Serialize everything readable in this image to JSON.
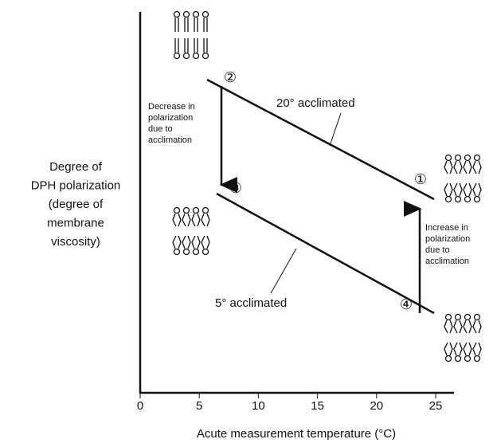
{
  "x_axis": {
    "label": "Acute measurement temperature (°C)",
    "ticks": [
      "0",
      "5",
      "10",
      "15",
      "20",
      "25"
    ]
  },
  "y_axis": {
    "label_lines": [
      "Degree of",
      "DPH polarization",
      "(degree of",
      "membrane",
      "viscosity)"
    ]
  },
  "lines": [
    {
      "label": "20° acclimated"
    },
    {
      "label": "5° acclimated"
    }
  ],
  "points": [
    "①",
    "②",
    "③",
    "④"
  ],
  "annotations": [
    {
      "lines": [
        "Decrease in",
        "polarization",
        "due to",
        "acclimation"
      ]
    },
    {
      "lines": [
        "Increase in",
        "polarization",
        "due to",
        "acclimation"
      ]
    }
  ]
}
